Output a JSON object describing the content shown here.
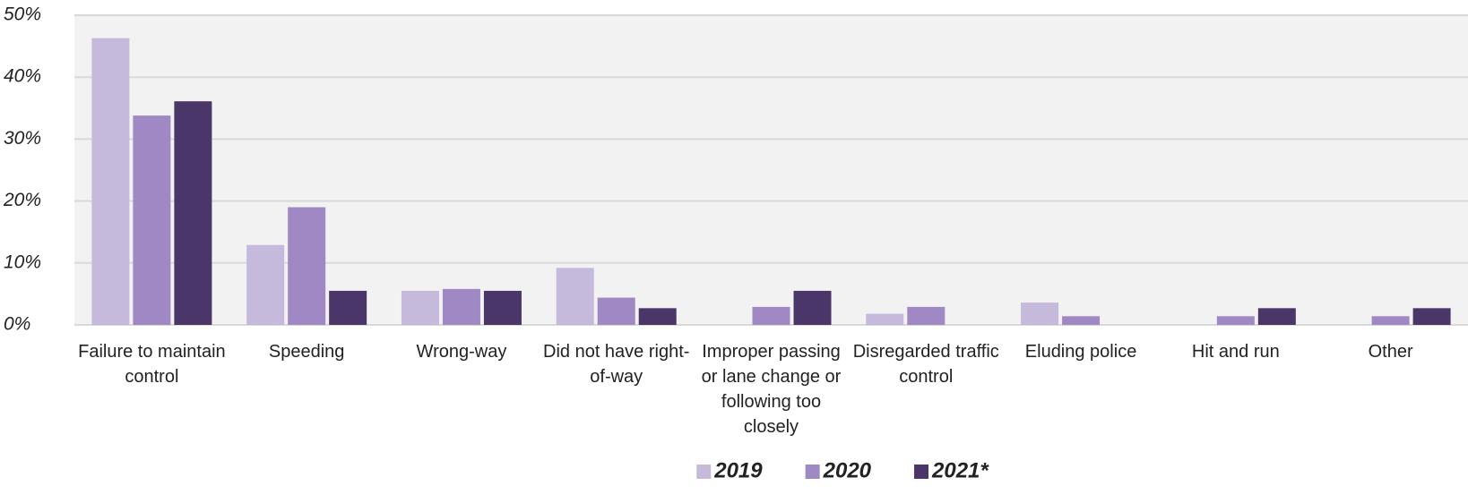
{
  "chart_data": {
    "type": "bar",
    "categories": [
      "Failure to maintain control",
      "Speeding",
      "Wrong-way",
      "Did not have right-of-way",
      "Improper passing or lane change or following too closely",
      "Disregarded traffic control",
      "Eluding police",
      "Hit and run",
      "Other"
    ],
    "series": [
      {
        "name": "2019",
        "color": "#c5b9dc",
        "values": [
          46.3,
          12.9,
          5.5,
          9.2,
          0,
          1.8,
          3.6,
          0,
          0
        ]
      },
      {
        "name": "2020",
        "color": "#9f88c4",
        "values": [
          33.8,
          19.0,
          5.8,
          4.4,
          2.9,
          2.9,
          1.4,
          1.4,
          1.4
        ]
      },
      {
        "name": "2021*",
        "color": "#4b3669",
        "values": [
          36.1,
          5.5,
          5.5,
          2.7,
          5.5,
          0,
          0,
          2.7,
          2.7
        ]
      }
    ],
    "ylim": [
      0,
      50
    ],
    "yticks": [
      {
        "value": 0,
        "label": "0%"
      },
      {
        "value": 10,
        "label": "10%"
      },
      {
        "value": 20,
        "label": "20%"
      },
      {
        "value": 30,
        "label": "30%"
      },
      {
        "value": 40,
        "label": "40%"
      },
      {
        "value": 50,
        "label": "50%"
      }
    ],
    "grid": true,
    "legend": "bottom"
  }
}
